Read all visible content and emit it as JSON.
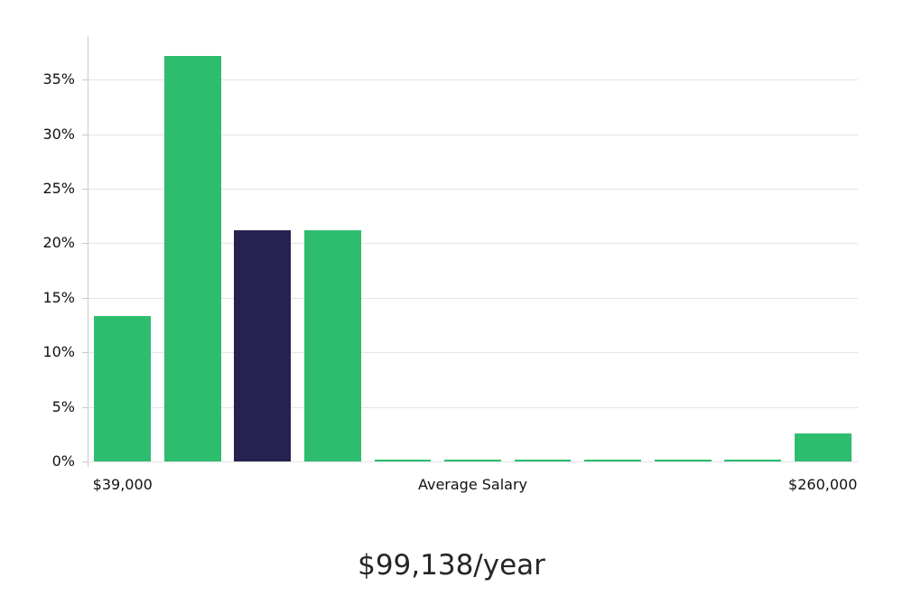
{
  "chart_data": {
    "type": "bar",
    "title": "$99,138/year",
    "x_axis_labels": {
      "left": "$39,000",
      "center": "Average Salary",
      "right": "$260,000"
    },
    "values": [
      13.3,
      37.2,
      21.2,
      21.2,
      0.15,
      0.15,
      0.15,
      0.15,
      0.15,
      0.15,
      2.6
    ],
    "highlight_index": 2,
    "yticks": [
      0,
      5,
      10,
      15,
      20,
      25,
      30,
      35
    ],
    "ytick_suffix": "%",
    "ylim": [
      0,
      39
    ],
    "legend": null,
    "grid": "horizontal",
    "colors": {
      "bar": "#2ebd6e",
      "highlight": "#262350",
      "gridline": "#e4e4e4",
      "axis": "#c9c9c9",
      "tick_text": "#111111",
      "title_text": "#262626"
    }
  }
}
